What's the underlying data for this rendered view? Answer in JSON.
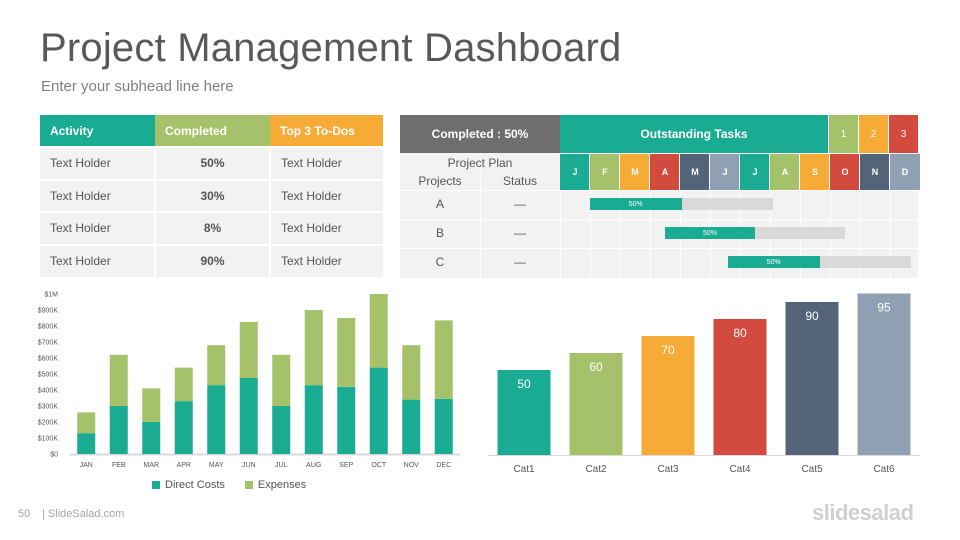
{
  "header": {
    "title": "Project Management Dashboard",
    "subtitle": "Enter your subhead line here"
  },
  "todo_table": {
    "headers": [
      "Activity",
      "Completed",
      "Top 3 To-Dos"
    ],
    "header_colors": [
      "#1aab93",
      "#a5c26a",
      "#f5ab35"
    ],
    "rows": [
      [
        "Text Holder",
        "50%",
        "Text Holder"
      ],
      [
        "Text Holder",
        "30%",
        "Text Holder"
      ],
      [
        "Text Holder",
        "8%",
        "Text Holder"
      ],
      [
        "Text Holder",
        "90%",
        "Text Holder"
      ]
    ]
  },
  "gantt": {
    "completed_label": "Completed : 50%",
    "outstanding_label": "Outstanding Tasks",
    "priorities": [
      {
        "label": "1",
        "color": "#a5c26a"
      },
      {
        "label": "2",
        "color": "#f5ab35"
      },
      {
        "label": "3",
        "color": "#d24b3e"
      }
    ],
    "project_plan_label": "Project Plan",
    "projects_label": "Projects",
    "status_label": "Status",
    "months": [
      {
        "label": "J",
        "color": "#1aab93"
      },
      {
        "label": "F",
        "color": "#a5c26a"
      },
      {
        "label": "M",
        "color": "#f5ab35"
      },
      {
        "label": "A",
        "color": "#d24b3e"
      },
      {
        "label": "M",
        "color": "#546478"
      },
      {
        "label": "J",
        "color": "#8fa0b3"
      },
      {
        "label": "J",
        "color": "#1aab93"
      },
      {
        "label": "A",
        "color": "#a5c26a"
      },
      {
        "label": "S",
        "color": "#f5ab35"
      },
      {
        "label": "O",
        "color": "#d24b3e"
      },
      {
        "label": "N",
        "color": "#546478"
      },
      {
        "label": "D",
        "color": "#8fa0b3"
      }
    ],
    "rows": [
      {
        "project": "A",
        "status": "—",
        "progress_label": "50%",
        "progress": 0.5,
        "start_month": 1,
        "end_month": 7.1
      },
      {
        "project": "B",
        "status": "—",
        "progress_label": "50%",
        "progress": 0.5,
        "start_month": 3.5,
        "end_month": 9.5
      },
      {
        "project": "C",
        "status": "—",
        "progress_label": "50%",
        "progress": 0.5,
        "start_month": 5.6,
        "end_month": 11.7
      }
    ]
  },
  "chart_data": [
    {
      "type": "bar",
      "stacked": true,
      "categories": [
        "JAN",
        "FEB",
        "MAR",
        "APR",
        "MAY",
        "JUN",
        "JUL",
        "AUG",
        "SEP",
        "OCT",
        "NOV",
        "DEC"
      ],
      "series": [
        {
          "name": "Direct Costs",
          "color": "#1aab93",
          "values": [
            130000,
            300000,
            200000,
            330000,
            430000,
            475000,
            300000,
            430000,
            420000,
            540000,
            340000,
            345000
          ]
        },
        {
          "name": "Expenses",
          "color": "#a5c26a",
          "values": [
            130000,
            320000,
            210000,
            210000,
            250000,
            350000,
            320000,
            470000,
            430000,
            460000,
            340000,
            490000
          ]
        }
      ],
      "y_ticks": [
        "$0",
        "$100K",
        "$200K",
        "$300K",
        "$400K",
        "$500K",
        "$600K",
        "$700K",
        "$800K",
        "$900K",
        "$1M"
      ],
      "ylim": [
        0,
        1000000
      ],
      "legend_position": "bottom",
      "grid": false
    },
    {
      "type": "bar",
      "categories": [
        "Cat1",
        "Cat2",
        "Cat3",
        "Cat4",
        "Cat5",
        "Cat6"
      ],
      "values": [
        50,
        60,
        70,
        80,
        90,
        95
      ],
      "colors": [
        "#1aab93",
        "#a5c26a",
        "#f5ab35",
        "#d24b3e",
        "#546478",
        "#8fa0b3"
      ],
      "ylim": [
        0,
        100
      ],
      "data_labels": true,
      "grid": false
    }
  ],
  "footer": {
    "page_number": "50",
    "brand_text": "| SlideSalad.com",
    "logo": "slidesalad"
  }
}
